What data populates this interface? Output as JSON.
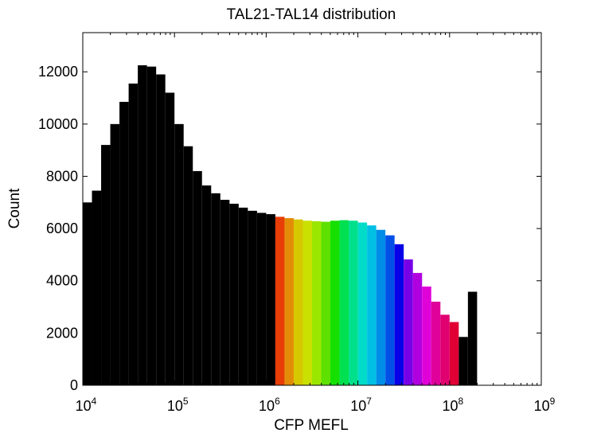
{
  "chart_data": {
    "type": "bar",
    "title": "TAL21-TAL14 distribution",
    "xlabel": "CFP MEFL",
    "ylabel": "Count",
    "xscale": "log",
    "xlim": [
      10000,
      1000000000
    ],
    "ylim": [
      0,
      13500
    ],
    "grid": false,
    "legend": "none",
    "bin_width_log10": 0.1,
    "first_bin_left": 10000,
    "x_ticks": [
      {
        "base": "10",
        "exp": "4"
      },
      {
        "base": "10",
        "exp": "5"
      },
      {
        "base": "10",
        "exp": "6"
      },
      {
        "base": "10",
        "exp": "7"
      },
      {
        "base": "10",
        "exp": "8"
      },
      {
        "base": "10",
        "exp": "9"
      }
    ],
    "y_ticks": [
      "0",
      "2000",
      "4000",
      "6000",
      "8000",
      "10000",
      "12000"
    ],
    "values": [
      7000,
      7450,
      9200,
      10000,
      10850,
      11550,
      12250,
      12200,
      11900,
      11200,
      10000,
      9150,
      8200,
      7650,
      7350,
      7100,
      6950,
      6800,
      6680,
      6600,
      6550,
      6450,
      6400,
      6350,
      6300,
      6280,
      6260,
      6300,
      6320,
      6300,
      6230,
      6120,
      5950,
      5740,
      5400,
      4820,
      4300,
      3780,
      3200,
      2700,
      2420,
      1850,
      3580
    ],
    "colors": [
      "#000000",
      "#000000",
      "#000000",
      "#000000",
      "#000000",
      "#000000",
      "#000000",
      "#000000",
      "#000000",
      "#000000",
      "#000000",
      "#000000",
      "#000000",
      "#000000",
      "#000000",
      "#000000",
      "#000000",
      "#000000",
      "#000000",
      "#000000",
      "#000000",
      "#e83d07",
      "#e38c08",
      "#d6c800",
      "#c9e000",
      "#9be600",
      "#5ee000",
      "#15e000",
      "#00e050",
      "#00e08a",
      "#00dcc8",
      "#00bfe5",
      "#008de8",
      "#0050e8",
      "#0800e6",
      "#7800e6",
      "#b000e0",
      "#e000d8",
      "#e0009a",
      "#e00070",
      "#e00035",
      "#000000",
      "#000000"
    ]
  }
}
